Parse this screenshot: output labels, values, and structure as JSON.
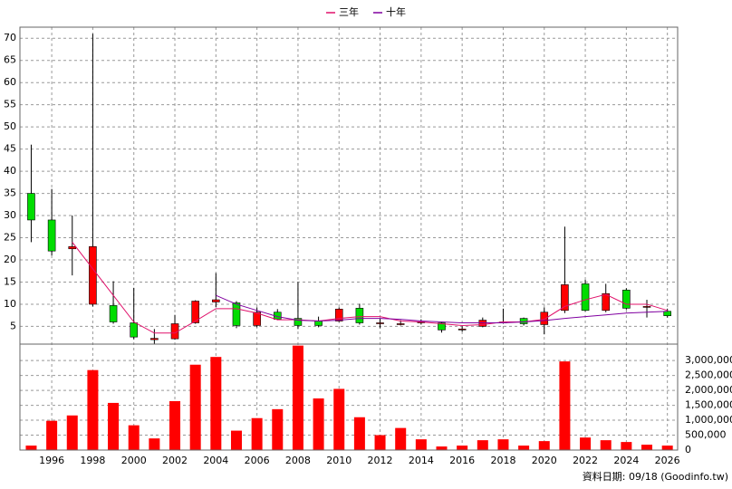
{
  "chart_data": [
    {
      "type": "candlestick",
      "x": [
        1995,
        1996,
        1997,
        1998,
        1999,
        2000,
        2001,
        2002,
        2003,
        2004,
        2005,
        2006,
        2007,
        2008,
        2009,
        2010,
        2011,
        2012,
        2013,
        2014,
        2015,
        2016,
        2017,
        2018,
        2019,
        2020,
        2021,
        2022,
        2023,
        2024,
        2025,
        2026
      ],
      "open": [
        35,
        29,
        22.5,
        10,
        9.7,
        5.8,
        2.0,
        2.2,
        5.8,
        10.5,
        10.3,
        5.2,
        8.2,
        6.8,
        6.2,
        6.2,
        9.1,
        5.8,
        5.6,
        6.0,
        5.8,
        4.4,
        5.0,
        6.0,
        6.8,
        5.4,
        8.6,
        14.6,
        8.6,
        13.2,
        9.5,
        8.4
      ],
      "high": [
        46,
        36,
        30,
        71,
        15.2,
        13.7,
        4.4,
        7.6,
        10.9,
        17,
        10.7,
        9.3,
        8.9,
        15,
        7.2,
        9.3,
        10.1,
        6.8,
        6.4,
        6.6,
        5.9,
        5.0,
        7.0,
        9.0,
        7.0,
        9.3,
        27.5,
        15.5,
        14.6,
        13.6,
        11,
        9
      ],
      "low": [
        24,
        21,
        16.5,
        9.5,
        5.6,
        2.1,
        1.1,
        2.0,
        5.6,
        9.3,
        4.6,
        4.8,
        6.4,
        4.4,
        4.8,
        6.0,
        5.4,
        4.6,
        5.2,
        5.4,
        3.6,
        3.8,
        4.8,
        5.6,
        5.2,
        3.2,
        8.0,
        8.4,
        8.2,
        8.8,
        7.0,
        7.0
      ],
      "close": [
        29,
        22,
        23,
        23,
        6.0,
        2.6,
        2.3,
        5.6,
        10.7,
        11,
        5.2,
        8.2,
        6.6,
        5.2,
        5.2,
        8.9,
        5.8,
        5.8,
        5.6,
        6.0,
        4.2,
        4.4,
        6.4,
        6.0,
        5.6,
        8.2,
        14.4,
        8.6,
        12.4,
        9.1,
        9.5,
        7.4
      ],
      "up_color": "#ff0000",
      "down_color": "#00dd00",
      "series": [
        {
          "name": "三年",
          "color": "#e0106a",
          "values": [
            null,
            null,
            24,
            18,
            12,
            6,
            3.5,
            3.5,
            6.2,
            9,
            9,
            8,
            6.5,
            6.5,
            6.2,
            6.8,
            7.2,
            7.2,
            6.2,
            6,
            5.6,
            5.2,
            5.4,
            6,
            6,
            6.6,
            9.5,
            11,
            12.2,
            10,
            10,
            8.6
          ]
        },
        {
          "name": "十年",
          "color": "#8000a0",
          "values": [
            null,
            null,
            null,
            null,
            null,
            null,
            null,
            null,
            null,
            12,
            10,
            8.6,
            7.2,
            6.4,
            6.2,
            6.4,
            6.8,
            6.8,
            6.6,
            6.2,
            6,
            5.8,
            5.8,
            5.8,
            6,
            6.3,
            6.8,
            7.2,
            7.6,
            8,
            8.2,
            8.4
          ]
        }
      ],
      "xlim": [
        1994.45,
        2026.5
      ],
      "ylim": [
        1,
        72.5
      ],
      "yticks": [
        5,
        10,
        15,
        20,
        25,
        30,
        35,
        40,
        45,
        50,
        55,
        60,
        65,
        70
      ],
      "grid": true,
      "legend": "top"
    },
    {
      "type": "bar",
      "x": [
        1995,
        1996,
        1997,
        1998,
        1999,
        2000,
        2001,
        2002,
        2003,
        2004,
        2005,
        2006,
        2007,
        2008,
        2009,
        2010,
        2011,
        2012,
        2013,
        2014,
        2015,
        2016,
        2017,
        2018,
        2019,
        2020,
        2021,
        2022,
        2023,
        2024,
        2025,
        2026
      ],
      "values": [
        150000,
        980000,
        1160000,
        2680000,
        1580000,
        830000,
        390000,
        1640000,
        2860000,
        3120000,
        650000,
        1070000,
        1370000,
        3500000,
        1730000,
        2050000,
        1100000,
        500000,
        740000,
        360000,
        120000,
        150000,
        330000,
        360000,
        150000,
        300000,
        2970000,
        420000,
        330000,
        270000,
        180000,
        150000
      ],
      "color": "#ff0000",
      "xlim": [
        1994.45,
        2026.5
      ],
      "ylim": [
        0,
        3550000
      ],
      "xticks": [
        1996,
        1998,
        2000,
        2002,
        2004,
        2006,
        2008,
        2010,
        2012,
        2014,
        2016,
        2018,
        2020,
        2022,
        2024,
        2026
      ],
      "yticks": [
        0,
        {
          "value": 500000,
          "label": "500,000"
        },
        {
          "value": 1000000,
          "label": "1,000,000"
        },
        {
          "value": 1500000,
          "label": "1,500,000"
        },
        {
          "value": 2000000,
          "label": "2,000,000"
        },
        {
          "value": 2500000,
          "label": "2,500,000"
        },
        {
          "value": 3000000,
          "label": "3,000,000"
        }
      ],
      "grid": true,
      "annotation": "資料日期: 09/18 (Goodinfo.tw)"
    }
  ]
}
